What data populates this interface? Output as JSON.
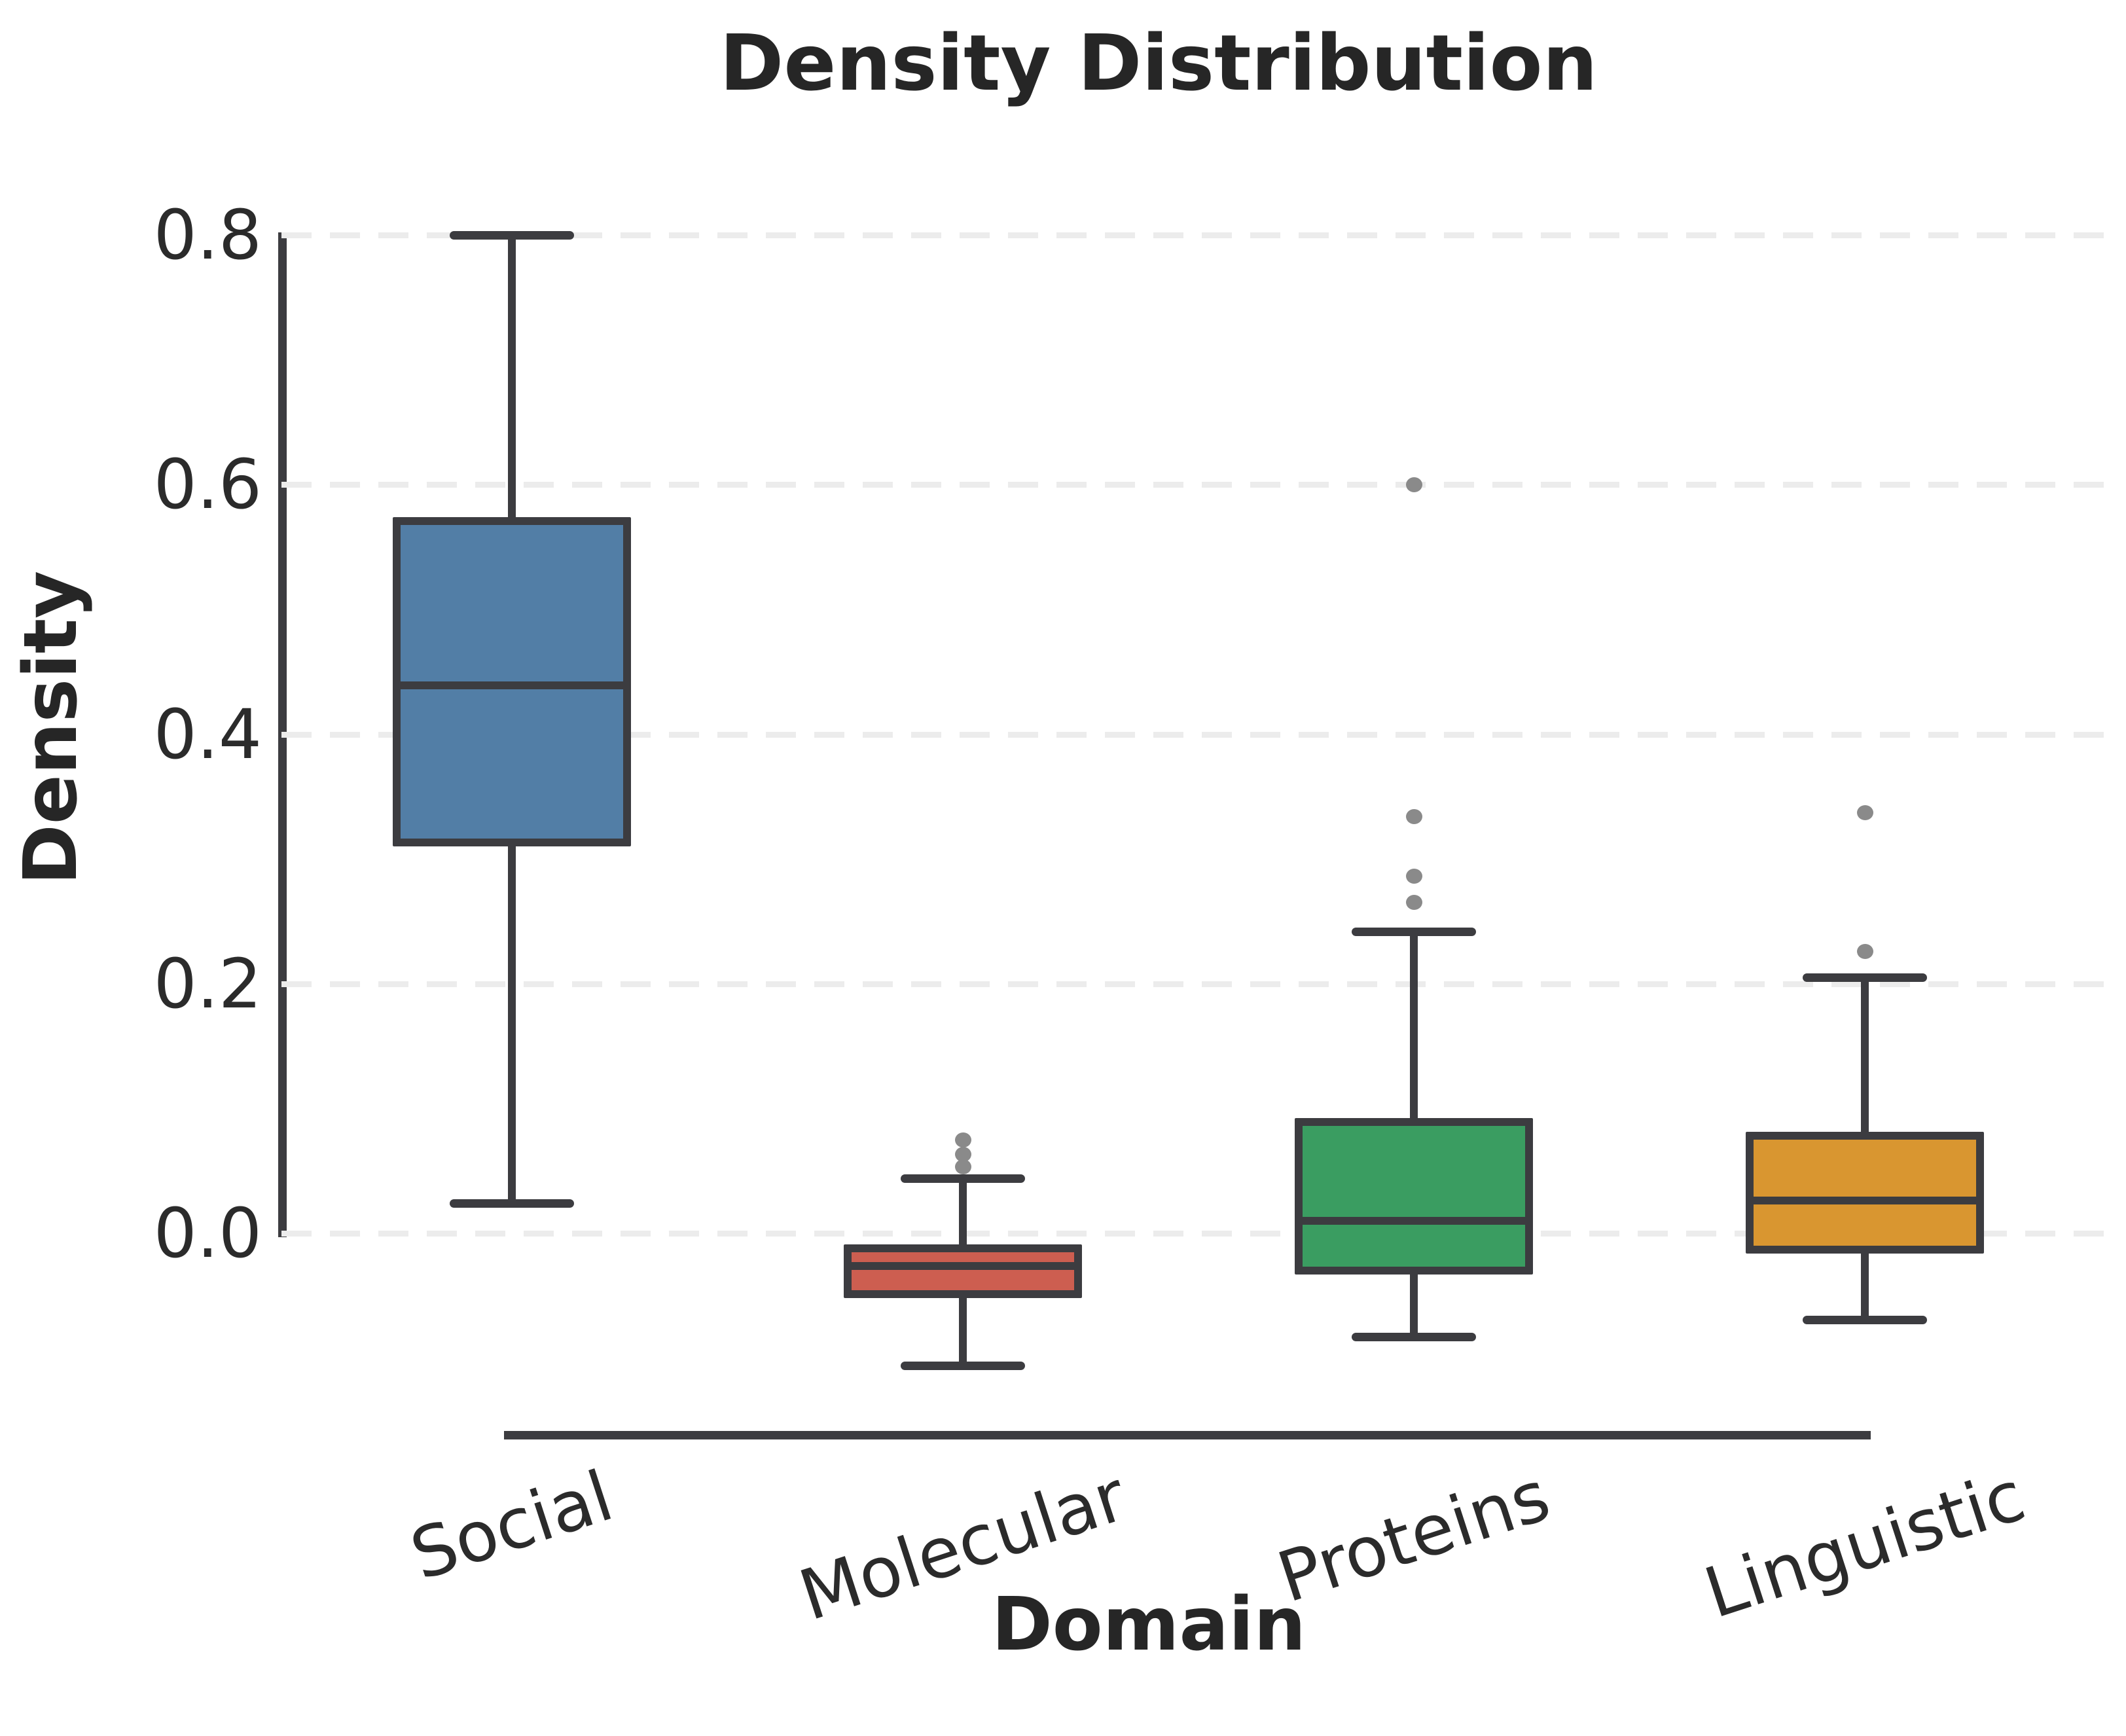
{
  "title": "Density Distribution",
  "axes": {
    "xlabel": "Domain",
    "ylabel": "Density"
  },
  "colors": {
    "line_dark": "#3c3c40",
    "gridline": "#ececec",
    "outlier_gray": "#8a8a8a",
    "text": "#262626",
    "background": "#ffffff",
    "social_blue": "#527ea6",
    "molecular_red": "#cd5e50",
    "proteins_green": "#3a9d61",
    "linguistic_orange": "#d99630"
  },
  "chart_data": {
    "type": "box",
    "title": "Density Distribution",
    "xlabel": "Domain",
    "ylabel": "Density",
    "categories": [
      "Social",
      "Molecular",
      "Proteins",
      "Linguistic"
    ],
    "yticks": [
      {
        "label": "0.0",
        "value": 0.0
      },
      {
        "label": "0.2",
        "value": 0.2
      },
      {
        "label": "0.4",
        "value": 0.4
      },
      {
        "label": "0.6",
        "value": 0.6
      },
      {
        "label": "0.8",
        "value": 0.8
      }
    ],
    "ylim": [
      -0.16,
      0.84
    ],
    "grid": "horizontal-dashed",
    "legend": "none",
    "series": [
      {
        "name": "Social",
        "color": "#527ea6",
        "whisker_low": 0.024,
        "q1": 0.313,
        "median": 0.439,
        "q3": 0.571,
        "whisker_high": 0.8,
        "outliers": []
      },
      {
        "name": "Molecular",
        "color": "#cd5e50",
        "whisker_low": -0.106,
        "q1": -0.049,
        "median": -0.026,
        "q3": -0.012,
        "whisker_high": 0.044,
        "outliers": [
          0.053,
          0.063,
          0.075
        ]
      },
      {
        "name": "Proteins",
        "color": "#3a9d61",
        "whisker_low": -0.083,
        "q1": -0.03,
        "median": 0.01,
        "q3": 0.089,
        "whisker_high": 0.242,
        "outliers": [
          0.265,
          0.286,
          0.334,
          0.6
        ]
      },
      {
        "name": "Linguistic",
        "color": "#d99630",
        "whisker_low": -0.069,
        "q1": -0.013,
        "median": 0.026,
        "q3": 0.078,
        "whisker_high": 0.205,
        "outliers": [
          0.226,
          0.337
        ]
      }
    ]
  }
}
